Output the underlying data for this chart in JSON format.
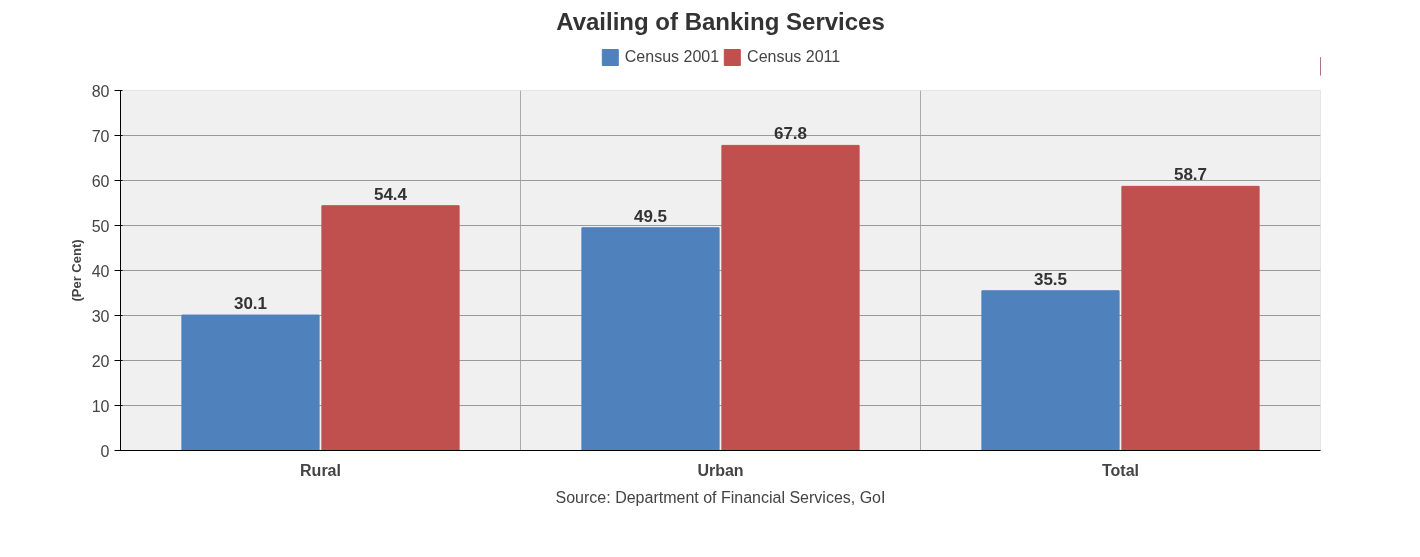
{
  "chart_data": {
    "type": "bar",
    "title": "Availing of Banking Services",
    "categories": [
      "Rural",
      "Urban",
      "Total"
    ],
    "series": [
      {
        "name": "Census 2001",
        "color": "#4f81bd",
        "values": [
          30.1,
          49.5,
          35.5
        ]
      },
      {
        "name": "Census 2011",
        "color": "#c0504d",
        "values": [
          54.4,
          67.8,
          58.7
        ]
      }
    ],
    "ylabel": "(Per Cent)",
    "ylim": [
      0,
      80
    ],
    "yticks": [
      0,
      10,
      20,
      30,
      40,
      50,
      60,
      70,
      80
    ],
    "grid": true,
    "legend": "top",
    "data_labels": true,
    "annotations": [
      "Source: Department of Financial Services, GoI"
    ]
  }
}
